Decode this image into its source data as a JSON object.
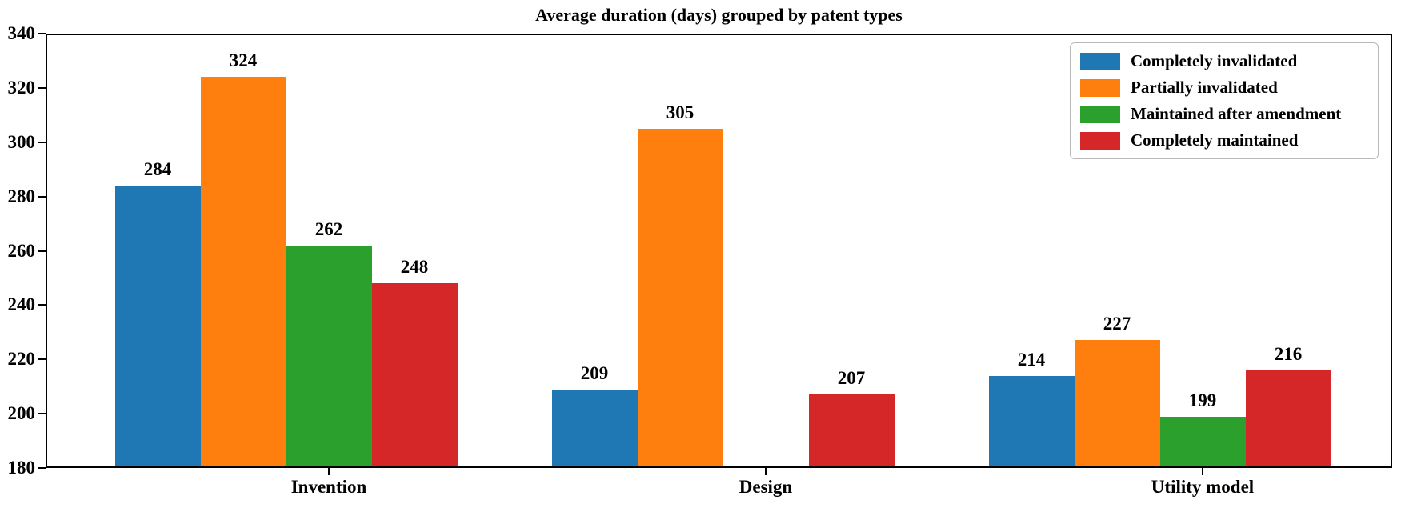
{
  "chart_data": {
    "type": "bar",
    "title": "Average duration (days) grouped by patent types",
    "categories": [
      "Invention",
      "Design",
      "Utility model"
    ],
    "series": [
      {
        "name": "Completely invalidated",
        "color": "#1f77b4",
        "values": [
          284,
          209,
          214
        ]
      },
      {
        "name": "Partially invalidated",
        "color": "#ff7f0e",
        "values": [
          324,
          305,
          227
        ]
      },
      {
        "name": "Maintained after amendment",
        "color": "#2ca02c",
        "values": [
          262,
          null,
          199
        ]
      },
      {
        "name": "Completely maintained",
        "color": "#d62728",
        "values": [
          248,
          207,
          216
        ]
      }
    ],
    "xlabel": "",
    "ylabel": "",
    "ylim": [
      180,
      340
    ],
    "yticks": [
      180,
      200,
      220,
      240,
      260,
      280,
      300,
      320,
      340
    ],
    "grid": false,
    "bar_labels": true,
    "legend_position": "upper right",
    "axis_color": "#000000",
    "background_color": "#ffffff"
  }
}
